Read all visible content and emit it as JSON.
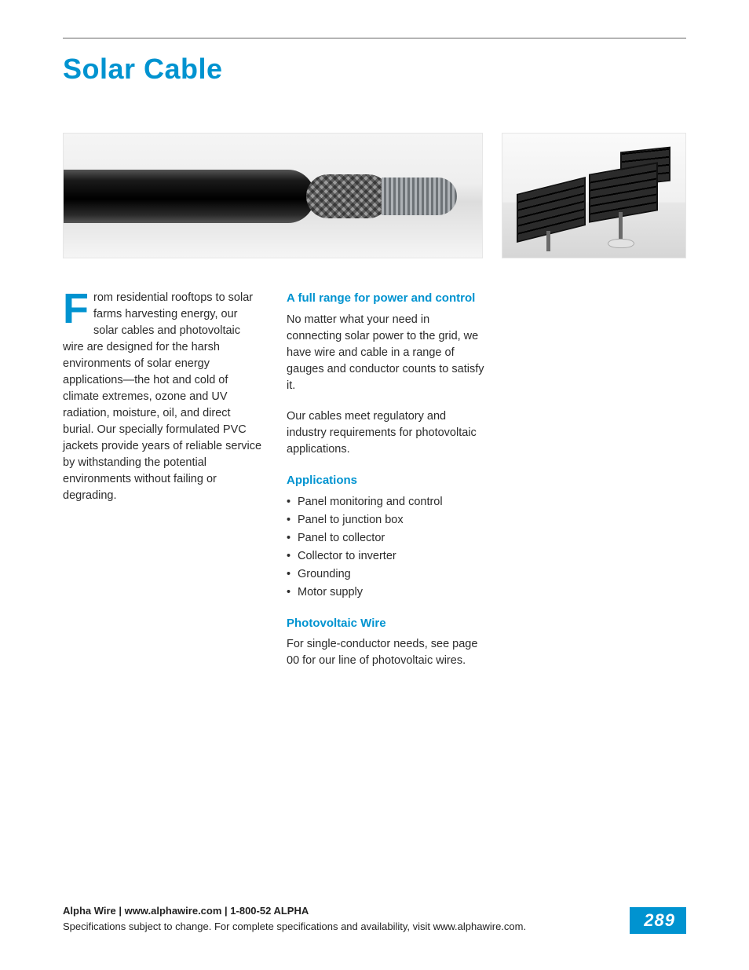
{
  "colors": {
    "accent": "#0093d0",
    "text": "#2b2b2b",
    "bg": "#ffffff"
  },
  "title": "Solar Cable",
  "intro": {
    "dropcap": "F",
    "text": "rom residential rooftops to solar farms harvesting energy, our solar cables and photovoltaic wire are designed for the harsh environments of solar energy applications—the hot and cold of climate extremes, ozone and UV radiation, moisture, oil, and direct burial. Our specially formulated PVC jackets provide years of reliable service by withstanding the potential environments without failing or degrading."
  },
  "sections": {
    "range": {
      "heading": "A full range for power and control",
      "p1": "No matter what your need in connecting solar power to the grid, we have wire and cable in a range of gauges and conductor counts to satisfy it.",
      "p2": "Our cables meet regulatory and industry requirements for photovoltaic applications."
    },
    "applications": {
      "heading": "Applications",
      "items": [
        "Panel monitoring and control",
        "Panel to junction box",
        "Panel to collector",
        "Collector to inverter",
        "Grounding",
        "Motor supply"
      ]
    },
    "pvwire": {
      "heading": "Photovoltaic Wire",
      "text": "For single-conductor needs, see page 00 for our line of photovoltaic wires."
    }
  },
  "footer": {
    "line1": "Alpha Wire | www.alphawire.com | 1-800-52 ALPHA",
    "line2": "Specifications subject to change. For complete specifications and availability, visit www.alphawire.com.",
    "page_number": "289"
  }
}
